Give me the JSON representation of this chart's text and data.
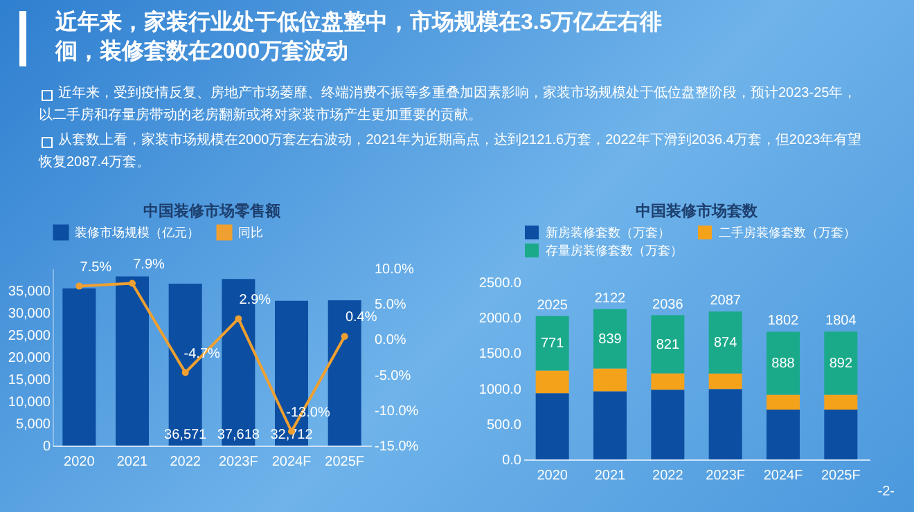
{
  "chart_data": [
    {
      "type": "other",
      "title": "近年来，家装行业处于低位盘整中，市场规模在3.5万亿左右徘徊，装修套数在2000万套波动",
      "annotations": [
        "近年来，受到疫情反复、房地产市场萎靡、终端消费不振等多重叠加因素影响，家装市场规模处于低位盘整阶段，预计2023-25年，以二手房和存量房带动的老房翻新或将对家装市场产生更加重要的贡献。",
        "从套数上看，家装市场规模在2000万套左右波动，2021年为近期高点，达到2121.6万套，2022年下滑到2036.4万套，但2023年有望恢复2087.4万套。",
        "-2-"
      ]
    },
    {
      "type": "bar",
      "title": "中国装修市场零售额",
      "categories": [
        "2020",
        "2021",
        "2022",
        "2023F",
        "2024F",
        "2025F"
      ],
      "series": [
        {
          "name": "装修市场规模（亿元）",
          "type": "bar",
          "color": "#0b4ea2",
          "values": [
            35500,
            38200,
            36571,
            37618,
            32712,
            32800
          ],
          "value_labels": [
            null,
            null,
            "36,571",
            "37,618",
            "32,712",
            null
          ]
        },
        {
          "name": "同比",
          "type": "line",
          "axis": "y2",
          "color": "#f0a030",
          "values": [
            7.5,
            7.9,
            -4.7,
            2.9,
            -13.0,
            0.4
          ],
          "value_labels": [
            "7.5%",
            "7.9%",
            "-4.7%",
            "2.9%",
            "-13.0%",
            "0.4%"
          ]
        }
      ],
      "ylim": [
        0,
        40000
      ],
      "yticks": [
        {
          "value": 0,
          "label": "0"
        },
        {
          "value": 5000,
          "label": "5,000"
        },
        {
          "value": 10000,
          "label": "10,000"
        },
        {
          "value": 15000,
          "label": "15,000"
        },
        {
          "value": 20000,
          "label": "20,000"
        },
        {
          "value": 25000,
          "label": "25,000"
        },
        {
          "value": 30000,
          "label": "30,000"
        },
        {
          "value": 35000,
          "label": "35,000"
        }
      ],
      "y2lim": [
        -15,
        10
      ],
      "y2ticks": [
        {
          "value": -15,
          "label": "-15.0%"
        },
        {
          "value": -10,
          "label": "-10.0%"
        },
        {
          "value": -5,
          "label": "-5.0%"
        },
        {
          "value": 0,
          "label": "0.0%"
        },
        {
          "value": 5,
          "label": "5.0%"
        },
        {
          "value": 10,
          "label": "10.0%"
        }
      ],
      "legend": "top",
      "marker": "circle"
    },
    {
      "type": "bar",
      "title": "中国装修市场套数",
      "categories": [
        "2020",
        "2021",
        "2022",
        "2023F",
        "2024F",
        "2025F"
      ],
      "stacked": true,
      "series": [
        {
          "name": "新房装修套数（万套）",
          "color": "#0b4ea2",
          "values": [
            934,
            963,
            985,
            993,
            704,
            702
          ]
        },
        {
          "name": "二手房装修套数（万套）",
          "color": "#f5a21b",
          "values": [
            320,
            320,
            230,
            220,
            210,
            210
          ]
        },
        {
          "name": "存量房装修套数（万套）",
          "color": "#1aaa8a",
          "values": [
            771,
            839,
            821,
            874,
            888,
            892
          ],
          "value_labels": [
            "771",
            "839",
            "821",
            "874",
            "888",
            "892"
          ]
        }
      ],
      "totals": [
        "2025",
        "2122",
        "2036",
        "2087",
        "1802",
        "1804"
      ],
      "ylim": [
        0,
        2500
      ],
      "yticks": [
        {
          "value": 0,
          "label": "0.0"
        },
        {
          "value": 500,
          "label": "500.0"
        },
        {
          "value": 1000,
          "label": "1000.0"
        },
        {
          "value": 1500,
          "label": "1500.0"
        },
        {
          "value": 2000,
          "label": "2000.0"
        },
        {
          "value": 2500,
          "label": "2500.0"
        }
      ],
      "legend": "top"
    }
  ]
}
